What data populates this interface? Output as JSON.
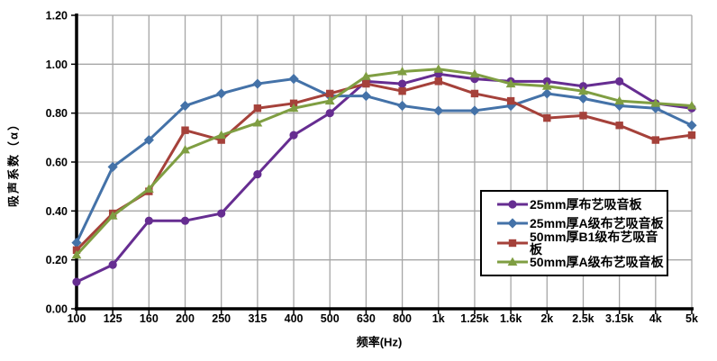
{
  "chart_data": {
    "type": "line",
    "title": "",
    "xlabel": "频率(Hz)",
    "ylabel": "吸声系数（α）",
    "ylim": [
      0,
      1.2
    ],
    "ytick_step": 0.2,
    "ytick_labels": [
      "0.00",
      "0.20",
      "0.40",
      "0.60",
      "0.80",
      "1.00",
      "1.20"
    ],
    "grid": true,
    "legend_position": "inside-right",
    "categories": [
      "100",
      "125",
      "160",
      "200",
      "250",
      "315",
      "400",
      "500",
      "630",
      "800",
      "1k",
      "1.25k",
      "1.6k",
      "2k",
      "2.5k",
      "3.15k",
      "4k",
      "5k"
    ],
    "series": [
      {
        "name": "25mm厚布艺吸音板",
        "marker": "circle",
        "color": "#662D91",
        "values": [
          0.11,
          0.18,
          0.36,
          0.36,
          0.39,
          0.55,
          0.71,
          0.8,
          0.93,
          0.92,
          0.96,
          0.94,
          0.93,
          0.93,
          0.91,
          0.93,
          0.84,
          0.82
        ]
      },
      {
        "name": "25mm厚A级布艺吸音板",
        "marker": "diamond",
        "color": "#4472A8",
        "values": [
          0.27,
          0.58,
          0.69,
          0.83,
          0.88,
          0.92,
          0.94,
          0.87,
          0.87,
          0.83,
          0.81,
          0.81,
          0.83,
          0.88,
          0.86,
          0.83,
          0.82,
          0.75
        ]
      },
      {
        "name": "50mm厚B1级布艺吸音板",
        "marker": "square",
        "color": "#A5413A",
        "values": [
          0.24,
          0.39,
          0.48,
          0.73,
          0.69,
          0.82,
          0.84,
          0.88,
          0.92,
          0.89,
          0.93,
          0.88,
          0.85,
          0.78,
          0.79,
          0.75,
          0.69,
          0.71
        ]
      },
      {
        "name": "50mm厚A级布艺吸音板",
        "marker": "triangle",
        "color": "#7F9E42",
        "values": [
          0.22,
          0.38,
          0.49,
          0.65,
          0.71,
          0.76,
          0.82,
          0.85,
          0.95,
          0.97,
          0.98,
          0.96,
          0.92,
          0.91,
          0.89,
          0.85,
          0.84,
          0.83
        ]
      }
    ]
  },
  "colors": {
    "background": "#FFFFFF",
    "gridline": "#A6A6A6",
    "axis": "#000000",
    "tick_label": "#000000",
    "legend_border": "#000000"
  }
}
